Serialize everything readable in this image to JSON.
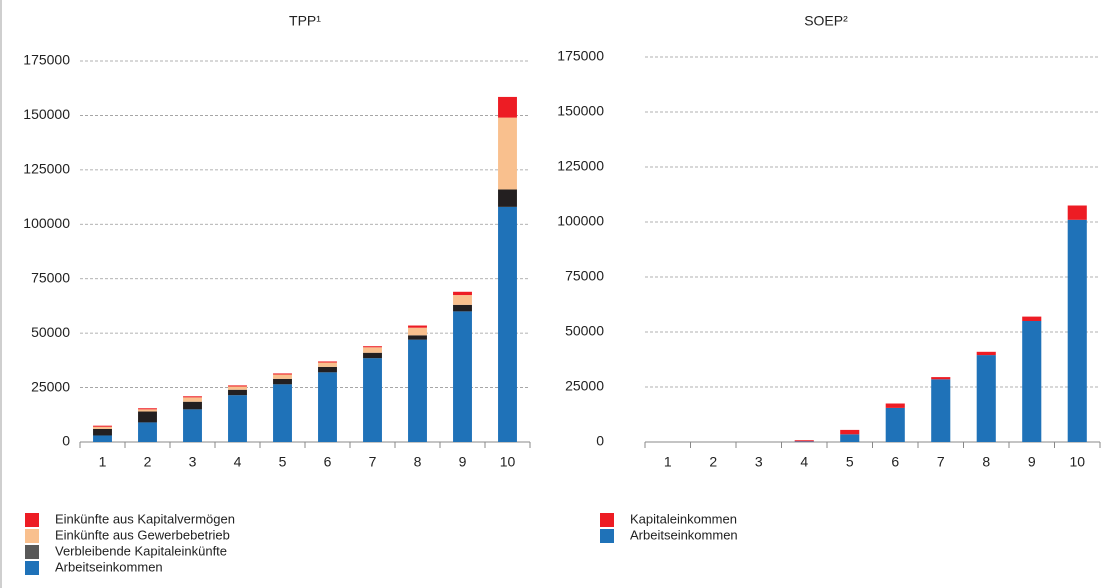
{
  "chart_data": [
    {
      "type": "bar",
      "stacked": true,
      "title": "TPP¹",
      "categories": [
        "1",
        "2",
        "3",
        "4",
        "5",
        "6",
        "7",
        "8",
        "9",
        "10"
      ],
      "series": [
        {
          "name": "Arbeitseinkommen",
          "color": "#1f72b8",
          "values": [
            3000,
            9000,
            15000,
            21500,
            26500,
            32000,
            38500,
            47000,
            60000,
            108000
          ]
        },
        {
          "name": "Verbleibende Kapitaleinkünfte",
          "color": "#231f20",
          "values": [
            3000,
            5000,
            3500,
            2500,
            2500,
            2500,
            2500,
            2000,
            3000,
            8000
          ]
        },
        {
          "name": "Einkünfte aus Gewerbebetrieb",
          "color": "#f9c08e",
          "values": [
            1000,
            1000,
            2000,
            1500,
            2000,
            2000,
            2500,
            3500,
            4500,
            33000
          ]
        },
        {
          "name": "Einkünfte aus Kapitalvermögen",
          "color": "#ed1c24",
          "values": [
            500,
            500,
            500,
            500,
            500,
            500,
            500,
            1000,
            1500,
            9500
          ]
        }
      ],
      "ylim": [
        0,
        175000
      ],
      "yticks": [
        0,
        25000,
        50000,
        75000,
        100000,
        125000,
        150000,
        175000
      ],
      "grid": true
    },
    {
      "type": "bar",
      "stacked": true,
      "title": "SOEP²",
      "categories": [
        "1",
        "2",
        "3",
        "4",
        "5",
        "6",
        "7",
        "8",
        "9",
        "10"
      ],
      "series": [
        {
          "name": "Arbeitseinkommen",
          "color": "#1f72b8",
          "values": [
            0,
            0,
            0,
            300,
            3500,
            15500,
            28500,
            39500,
            55000,
            101000
          ]
        },
        {
          "name": "Kapitaleinkommen",
          "color": "#ed1c24",
          "values": [
            0,
            0,
            0,
            500,
            2000,
            2000,
            1000,
            1500,
            2000,
            6500
          ]
        }
      ],
      "ylim": [
        0,
        175000
      ],
      "yticks": [
        0,
        25000,
        50000,
        75000,
        100000,
        125000,
        150000,
        175000
      ],
      "grid": true
    }
  ]
}
